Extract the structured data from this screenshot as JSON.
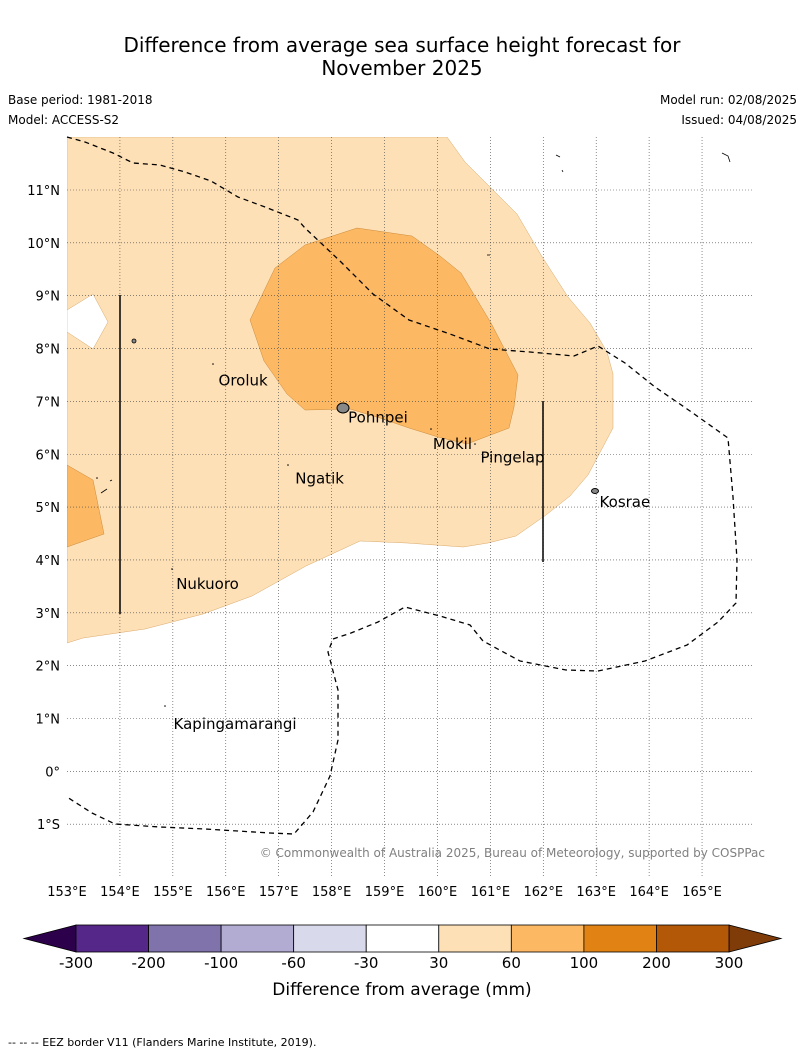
{
  "title_line1": "Difference from average sea surface height forecast for",
  "title_line2": "November 2025",
  "base_period": "Base period: 1981-2018",
  "model": "Model: ACCESS-S2",
  "model_run": "Model run: 02/08/2025",
  "issued": "Issued: 04/08/2025",
  "copyright": "© Commonwealth of Australia 2025, Bureau of Meteorology, supported by COSPPac",
  "lon_ticks": [
    "153°E",
    "154°E",
    "155°E",
    "156°E",
    "157°E",
    "158°E",
    "159°E",
    "160°E",
    "161°E",
    "162°E",
    "163°E",
    "164°E",
    "165°E"
  ],
  "lat_ticks": [
    "11°N",
    "10°N",
    "9°N",
    "8°N",
    "7°N",
    "6°N",
    "5°N",
    "4°N",
    "3°N",
    "2°N",
    "1°N",
    "0°",
    "1°S"
  ],
  "places": [
    {
      "name": "Oroluk",
      "lon": 155.75,
      "lat": 7.6
    },
    {
      "name": "Pohnpei",
      "lon": 158.2,
      "lat": 6.9
    },
    {
      "name": "Mokil",
      "lon": 159.8,
      "lat": 6.4
    },
    {
      "name": "Pingelap",
      "lon": 160.7,
      "lat": 6.15
    },
    {
      "name": "Ngatik",
      "lon": 157.2,
      "lat": 5.75
    },
    {
      "name": "Kosrae",
      "lon": 162.95,
      "lat": 5.3
    },
    {
      "name": "Nukuoro",
      "lon": 154.95,
      "lat": 3.75
    },
    {
      "name": "Kapingamarangi",
      "lon": 154.9,
      "lat": 1.1
    }
  ],
  "colorbar": {
    "labels": [
      "-300",
      "-200",
      "-100",
      "-60",
      "-30",
      "30",
      "60",
      "100",
      "200",
      "300"
    ],
    "colors": [
      "#542788",
      "#8073ac",
      "#b2abd2",
      "#d8daeb",
      "#ffffff",
      "#fee0b6",
      "#fdb863",
      "#e08214",
      "#b35806"
    ],
    "low_extend": "#2d004b",
    "high_extend": "#7f3b08",
    "title": "Difference from average (mm)"
  },
  "footer": "--  --  -- EEZ border V11 (Flanders Marine Institute, 2019)."
}
